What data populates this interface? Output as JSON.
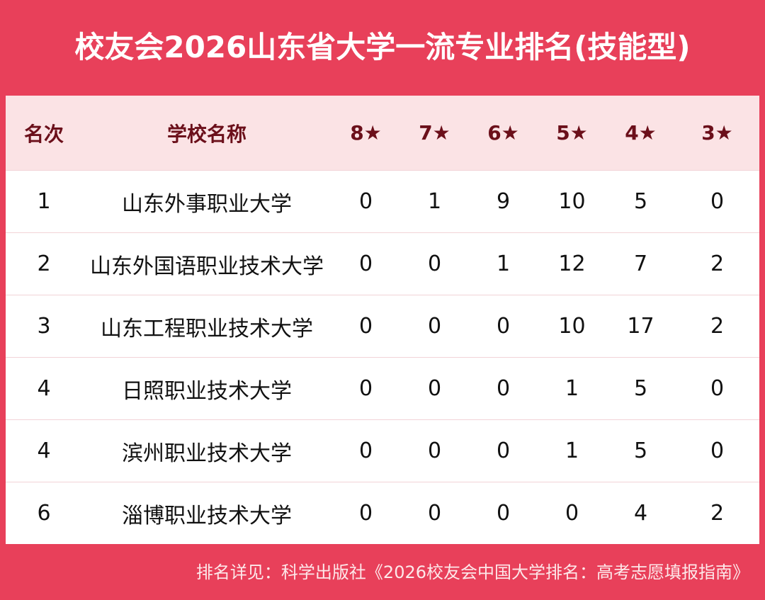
{
  "header": {
    "title": "校友会2026山东省大学一流专业排名(技能型)"
  },
  "table": {
    "columns": [
      "名次",
      "学校名称",
      "8★",
      "7★",
      "6★",
      "5★",
      "4★",
      "3★"
    ],
    "rows": [
      [
        1,
        "山东外事职业大学",
        0,
        1,
        9,
        10,
        5,
        0
      ],
      [
        2,
        "山东外国语职业技术大学",
        0,
        0,
        1,
        12,
        7,
        2
      ],
      [
        3,
        "山东工程职业技术大学",
        0,
        0,
        0,
        10,
        17,
        2
      ],
      [
        4,
        "日照职业技术大学",
        0,
        0,
        0,
        1,
        5,
        0
      ],
      [
        4,
        "滨州职业技术大学",
        0,
        0,
        0,
        1,
        5,
        0
      ],
      [
        6,
        "淄博职业技术大学",
        0,
        0,
        0,
        0,
        4,
        2
      ]
    ]
  },
  "footer": {
    "note": "排名详见：科学出版社《2026校友会中国大学排名：高考志愿填报指南》"
  }
}
